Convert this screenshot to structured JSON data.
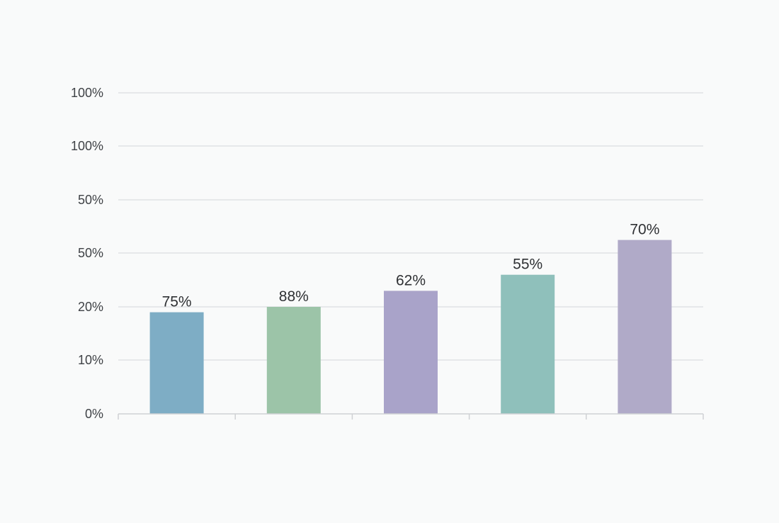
{
  "chart_data": {
    "type": "bar",
    "title": "",
    "xlabel": "",
    "ylabel": "",
    "y_tick_labels": [
      "0%",
      "10%",
      "20%",
      "50%",
      "50%",
      "100%",
      "100%"
    ],
    "categories": [
      "",
      "",
      "",
      "",
      ""
    ],
    "values": [
      19,
      20,
      23,
      26,
      32.5
    ],
    "data_labels": [
      "75%",
      "88%",
      "62%",
      "55%",
      "70%"
    ],
    "ylim": [
      0,
      60
    ],
    "grid": true,
    "legend": "none",
    "colors": [
      "#7eadc5",
      "#9cc4a8",
      "#a9a3c9",
      "#8fc0bb",
      "#b0aac8"
    ]
  }
}
